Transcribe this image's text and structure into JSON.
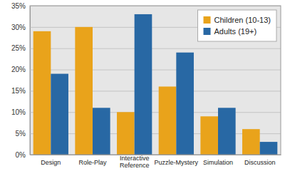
{
  "chart_data": {
    "type": "bar",
    "categories": [
      "Design",
      "Role-Play",
      "Interactive Reference",
      "Puzzle-Mystery",
      "Simulation",
      "Discussion"
    ],
    "series": [
      {
        "name": "Children (10-13)",
        "color": "#e9a31b",
        "values": [
          29,
          30,
          10,
          16,
          9,
          6
        ]
      },
      {
        "name": "Adults (19+)",
        "color": "#2868a4",
        "values": [
          19,
          11,
          33,
          24,
          11,
          3
        ]
      }
    ],
    "ylim": [
      0,
      35
    ],
    "yticks": [
      {
        "value": 0,
        "label": "0%"
      },
      {
        "value": 5,
        "label": "5%"
      },
      {
        "value": 10,
        "label": "10%"
      },
      {
        "value": 15,
        "label": "15%"
      },
      {
        "value": 20,
        "label": "20%"
      },
      {
        "value": 25,
        "label": "25%"
      },
      {
        "value": 30,
        "label": "30%"
      },
      {
        "value": 35,
        "label": "35%"
      }
    ],
    "grid": true,
    "legend": "upper-right"
  }
}
